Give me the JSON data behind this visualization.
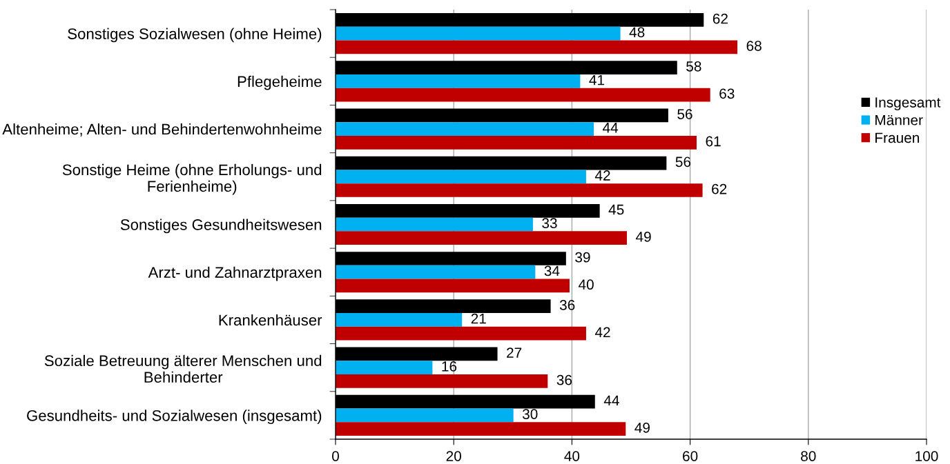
{
  "chart_data": {
    "type": "bar",
    "orientation": "horizontal",
    "categories": [
      "Sonstiges Sozialwesen (ohne Heime)",
      "Pflegeheime",
      "Altenheime; Alten- und Behindertenwohnheime",
      "Sonstige Heime (ohne Erholungs- und\nFerienheime)",
      "Sonstiges Gesundheitswesen",
      "Arzt- und Zahnarztpraxen",
      "Krankenhäuser",
      "Soziale Betreuung älterer Menschen und\nBehinderter",
      "Gesundheits- und Sozialwesen (insgesamt)"
    ],
    "series": [
      {
        "name": "Insgesamt",
        "color": "#000000",
        "values": [
          62.3,
          57.8,
          56.3,
          56.0,
          44.7,
          39.0,
          36.4,
          27.4,
          43.9
        ],
        "value_labels": [
          "62",
          "58",
          "56",
          "56",
          "45",
          "39",
          "36",
          "27",
          "44"
        ]
      },
      {
        "name": "Männer",
        "color": "#00b0f0",
        "values": [
          48.2,
          41.4,
          43.7,
          42.4,
          33.4,
          33.8,
          21.4,
          16.4,
          30.1
        ],
        "value_labels": [
          "48",
          "41",
          "44",
          "42",
          "33",
          "34",
          "21",
          "16",
          "30"
        ]
      },
      {
        "name": "Frauen",
        "color": "#c00000",
        "values": [
          68.0,
          63.4,
          61.1,
          62.1,
          49.3,
          39.6,
          42.4,
          35.9,
          49.1
        ],
        "value_labels": [
          "68",
          "63",
          "61",
          "62",
          "49",
          "40",
          "42",
          "36",
          "49"
        ]
      }
    ],
    "xlim": [
      0,
      100
    ],
    "xticks": [
      0,
      20,
      40,
      60,
      80,
      100
    ],
    "grid": "x",
    "legend": "right"
  }
}
